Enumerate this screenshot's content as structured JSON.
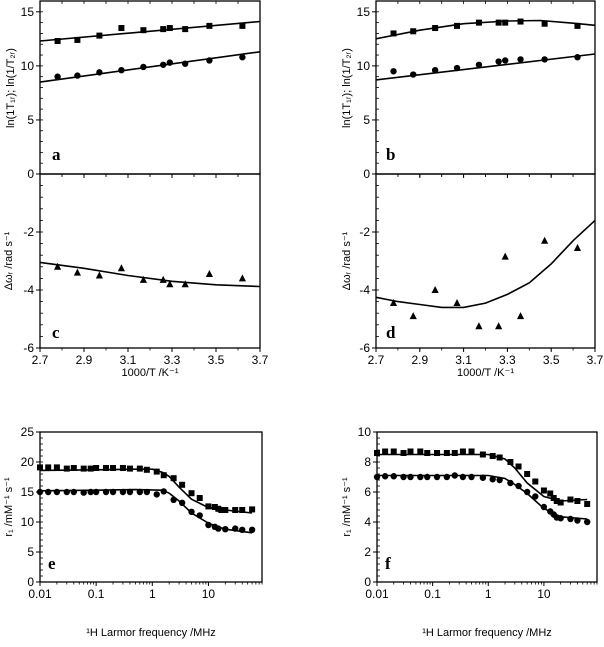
{
  "chart_data": [
    {
      "panel": "a",
      "type": "scatter",
      "xlim": [
        2.7,
        3.7
      ],
      "ylim": [
        0,
        16
      ],
      "xscale": "linear",
      "xticks": [
        "2.7",
        "2.9",
        "3.1",
        "3.3",
        "3.5",
        "3.7"
      ],
      "xtick_labels_shown": false,
      "yticks": [
        "0",
        "5",
        "10",
        "15"
      ],
      "ylabel": "ln(1T₁ᵣ);  ln(1/T₂ᵣ)",
      "xlabel": "",
      "series": [
        {
          "marker": "square",
          "x": [
            2.78,
            2.87,
            2.97,
            3.07,
            3.17,
            3.26,
            3.29,
            3.36,
            3.47,
            3.62
          ],
          "y": [
            12.3,
            12.4,
            12.8,
            13.5,
            13.3,
            13.4,
            13.5,
            13.4,
            13.7,
            13.7
          ],
          "fit": {
            "x": [
              2.7,
              3.7
            ],
            "y": [
              12.3,
              14.1
            ]
          }
        },
        {
          "marker": "circle",
          "x": [
            2.78,
            2.87,
            2.97,
            3.07,
            3.17,
            3.26,
            3.29,
            3.36,
            3.47,
            3.62
          ],
          "y": [
            9.0,
            9.1,
            9.4,
            9.6,
            9.9,
            10.1,
            10.3,
            10.2,
            10.5,
            10.8
          ],
          "fit": {
            "x": [
              2.7,
              3.7
            ],
            "y": [
              8.5,
              11.3
            ]
          }
        }
      ]
    },
    {
      "panel": "c",
      "type": "scatter",
      "xlim": [
        2.7,
        3.7
      ],
      "ylim": [
        -6,
        0
      ],
      "xscale": "linear",
      "xticks": [
        "2.7",
        "2.9",
        "3.1",
        "3.3",
        "3.5",
        "3.7"
      ],
      "xtick_labels_shown": true,
      "yticks": [
        "-6",
        "-4",
        "-2"
      ],
      "ylabel": "Δωᵣ   /rad s⁻¹",
      "xlabel": "1000/T    /K⁻¹",
      "series": [
        {
          "marker": "triangle",
          "x": [
            2.78,
            2.87,
            2.97,
            3.07,
            3.17,
            3.26,
            3.29,
            3.36,
            3.47,
            3.62
          ],
          "y": [
            -3.2,
            -3.4,
            -3.5,
            -3.25,
            -3.65,
            -3.65,
            -3.8,
            -3.8,
            -3.45,
            -3.6
          ],
          "fit": {
            "x": [
              2.7,
              2.9,
              3.1,
              3.3,
              3.5,
              3.7
            ],
            "y": [
              -3.05,
              -3.25,
              -3.5,
              -3.7,
              -3.82,
              -3.88
            ]
          }
        }
      ]
    },
    {
      "panel": "b",
      "type": "scatter",
      "xlim": [
        2.7,
        3.7
      ],
      "ylim": [
        0,
        16
      ],
      "xscale": "linear",
      "xticks": [
        "2.7",
        "2.9",
        "3.1",
        "3.3",
        "3.5",
        "3.7"
      ],
      "xtick_labels_shown": false,
      "yticks": [
        "0",
        "5",
        "10",
        "15"
      ],
      "ylabel": "ln(1T₁ᵣ);  ln(1/T₂ᵣ)",
      "xlabel": "",
      "series": [
        {
          "marker": "square",
          "x": [
            2.78,
            2.87,
            2.97,
            3.07,
            3.17,
            3.26,
            3.29,
            3.36,
            3.47,
            3.62
          ],
          "y": [
            13.0,
            13.2,
            13.5,
            13.7,
            14.0,
            14.0,
            14.0,
            14.1,
            13.9,
            13.7
          ],
          "fit": {
            "x": [
              2.7,
              2.9,
              3.1,
              3.3,
              3.45,
              3.6,
              3.7
            ],
            "y": [
              12.5,
              13.3,
              13.9,
              14.15,
              14.2,
              13.95,
              13.75
            ]
          }
        },
        {
          "marker": "circle",
          "x": [
            2.78,
            2.87,
            2.97,
            3.07,
            3.17,
            3.26,
            3.29,
            3.36,
            3.47,
            3.62
          ],
          "y": [
            9.5,
            9.2,
            9.6,
            9.8,
            10.1,
            10.4,
            10.5,
            10.6,
            10.6,
            10.8
          ],
          "fit": {
            "x": [
              2.7,
              3.7
            ],
            "y": [
              8.7,
              11.1
            ]
          }
        }
      ]
    },
    {
      "panel": "d",
      "type": "scatter",
      "xlim": [
        2.7,
        3.7
      ],
      "ylim": [
        -6,
        0
      ],
      "xscale": "linear",
      "xticks": [
        "2.7",
        "2.9",
        "3.1",
        "3.3",
        "3.5",
        "3.7"
      ],
      "xtick_labels_shown": true,
      "yticks": [
        "-6",
        "-4",
        "-2"
      ],
      "ylabel": "Δωᵣ   /rad s⁻¹",
      "xlabel": "1000/T    /K⁻¹",
      "series": [
        {
          "marker": "triangle",
          "x": [
            2.78,
            2.87,
            2.97,
            3.07,
            3.17,
            3.26,
            3.29,
            3.36,
            3.47,
            3.62
          ],
          "y": [
            -4.45,
            -4.9,
            -4.0,
            -4.45,
            -5.25,
            -5.25,
            -2.85,
            -4.9,
            -2.3,
            -2.55
          ],
          "fit": {
            "x": [
              2.7,
              2.8,
              2.9,
              3.0,
              3.1,
              3.2,
              3.3,
              3.4,
              3.5,
              3.6,
              3.7
            ],
            "y": [
              -4.25,
              -4.4,
              -4.5,
              -4.6,
              -4.6,
              -4.45,
              -4.15,
              -3.75,
              -3.1,
              -2.3,
              -1.6
            ]
          }
        }
      ]
    },
    {
      "panel": "e",
      "type": "scatter",
      "xlim": [
        0.01,
        90
      ],
      "ylim": [
        0,
        25
      ],
      "xscale": "log",
      "xticks": [
        "0.01",
        "0.1",
        "1",
        "10"
      ],
      "xtick_labels_shown": true,
      "yticks": [
        "0",
        "5",
        "10",
        "15",
        "20",
        "25"
      ],
      "ylabel": "r₁   /mM⁻¹ s⁻¹",
      "xlabel": "¹H  Larmor frequency    /MHz",
      "series": [
        {
          "marker": "square",
          "x": [
            0.01,
            0.014,
            0.02,
            0.03,
            0.04,
            0.06,
            0.08,
            0.1,
            0.15,
            0.2,
            0.3,
            0.4,
            0.6,
            0.8,
            1.2,
            1.6,
            2.4,
            3.4,
            5,
            7,
            10,
            13,
            15,
            17,
            20,
            30,
            40,
            60
          ],
          "y": [
            19.1,
            19.1,
            19.1,
            18.9,
            19.0,
            18.9,
            18.9,
            19.0,
            19.0,
            19.0,
            19.0,
            18.9,
            18.9,
            18.7,
            18.4,
            17.8,
            17.3,
            16.2,
            14.8,
            14.0,
            12.6,
            12.5,
            12.2,
            12.0,
            12.0,
            12.0,
            12.0,
            12.1
          ],
          "fit": {
            "x": [
              0.01,
              0.1,
              0.5,
              1,
              1.5,
              2,
              3,
              5,
              10,
              20,
              60
            ],
            "y": [
              18.6,
              18.7,
              18.8,
              18.8,
              18.3,
              17.6,
              15.8,
              13.8,
              12.4,
              12.0,
              11.5
            ]
          }
        },
        {
          "marker": "circle",
          "x": [
            0.01,
            0.014,
            0.02,
            0.03,
            0.04,
            0.06,
            0.08,
            0.1,
            0.15,
            0.2,
            0.3,
            0.4,
            0.6,
            0.8,
            1.2,
            1.6,
            2.4,
            3.4,
            5,
            7,
            10,
            13,
            15,
            20,
            30,
            40,
            60
          ],
          "y": [
            15.0,
            15.0,
            15.0,
            15.0,
            15.0,
            14.9,
            15.0,
            15.0,
            15.0,
            15.0,
            15.0,
            15.0,
            15.0,
            15.0,
            14.6,
            15.1,
            13.7,
            13.2,
            11.7,
            11.1,
            9.5,
            9.2,
            8.9,
            8.8,
            8.9,
            8.7,
            8.7
          ],
          "fit": {
            "x": [
              0.01,
              0.1,
              0.5,
              1.5,
              2,
              3,
              5,
              10,
              20,
              60
            ],
            "y": [
              15.2,
              15.3,
              15.4,
              15.3,
              14.8,
              13.5,
              11.5,
              9.8,
              8.8,
              8.2
            ]
          }
        }
      ]
    },
    {
      "panel": "f",
      "type": "scatter",
      "xlim": [
        0.01,
        90
      ],
      "ylim": [
        0,
        10
      ],
      "xscale": "log",
      "xticks": [
        "0.01",
        "0.1",
        "1",
        "10"
      ],
      "xtick_labels_shown": true,
      "yticks": [
        "0",
        "2",
        "4",
        "6",
        "8",
        "10"
      ],
      "ylabel": "r₁   /mM⁻¹ s⁻¹",
      "xlabel": "¹H  Larmor frequency    /MHz",
      "series": [
        {
          "marker": "square",
          "x": [
            0.01,
            0.014,
            0.02,
            0.03,
            0.04,
            0.06,
            0.08,
            0.12,
            0.18,
            0.25,
            0.35,
            0.5,
            0.8,
            1.2,
            1.6,
            2.5,
            3.5,
            5,
            7,
            10,
            13,
            15,
            17,
            20,
            30,
            40,
            60
          ],
          "y": [
            8.6,
            8.7,
            8.7,
            8.6,
            8.7,
            8.7,
            8.6,
            8.6,
            8.6,
            8.6,
            8.7,
            8.7,
            8.5,
            8.4,
            8.3,
            8.0,
            7.7,
            7.2,
            6.7,
            6.1,
            5.9,
            5.6,
            5.4,
            5.3,
            5.5,
            5.4,
            5.2
          ],
          "fit": {
            "x": [
              0.01,
              0.1,
              1,
              2,
              3,
              5,
              10,
              20,
              60
            ],
            "y": [
              8.5,
              8.5,
              8.5,
              8.2,
              7.6,
              6.6,
              5.7,
              5.4,
              5.5
            ]
          }
        },
        {
          "marker": "circle",
          "x": [
            0.01,
            0.014,
            0.02,
            0.03,
            0.04,
            0.06,
            0.08,
            0.12,
            0.18,
            0.25,
            0.35,
            0.5,
            0.8,
            1.2,
            1.6,
            2.5,
            3.5,
            5,
            7,
            10,
            13,
            15,
            17,
            20,
            30,
            40,
            60
          ],
          "y": [
            7.0,
            7.05,
            7.05,
            7.0,
            7.0,
            7.0,
            7.0,
            7.0,
            7.0,
            7.1,
            7.0,
            7.0,
            6.95,
            6.85,
            6.8,
            6.6,
            6.4,
            6.0,
            5.7,
            5.0,
            4.7,
            4.5,
            4.3,
            4.25,
            4.2,
            4.1,
            4.0
          ],
          "fit": {
            "x": [
              0.01,
              0.1,
              1,
              2,
              3,
              5,
              10,
              20,
              60
            ],
            "y": [
              7.1,
              7.1,
              7.1,
              6.9,
              6.5,
              5.9,
              4.9,
              4.35,
              4.2
            ]
          }
        }
      ]
    }
  ]
}
